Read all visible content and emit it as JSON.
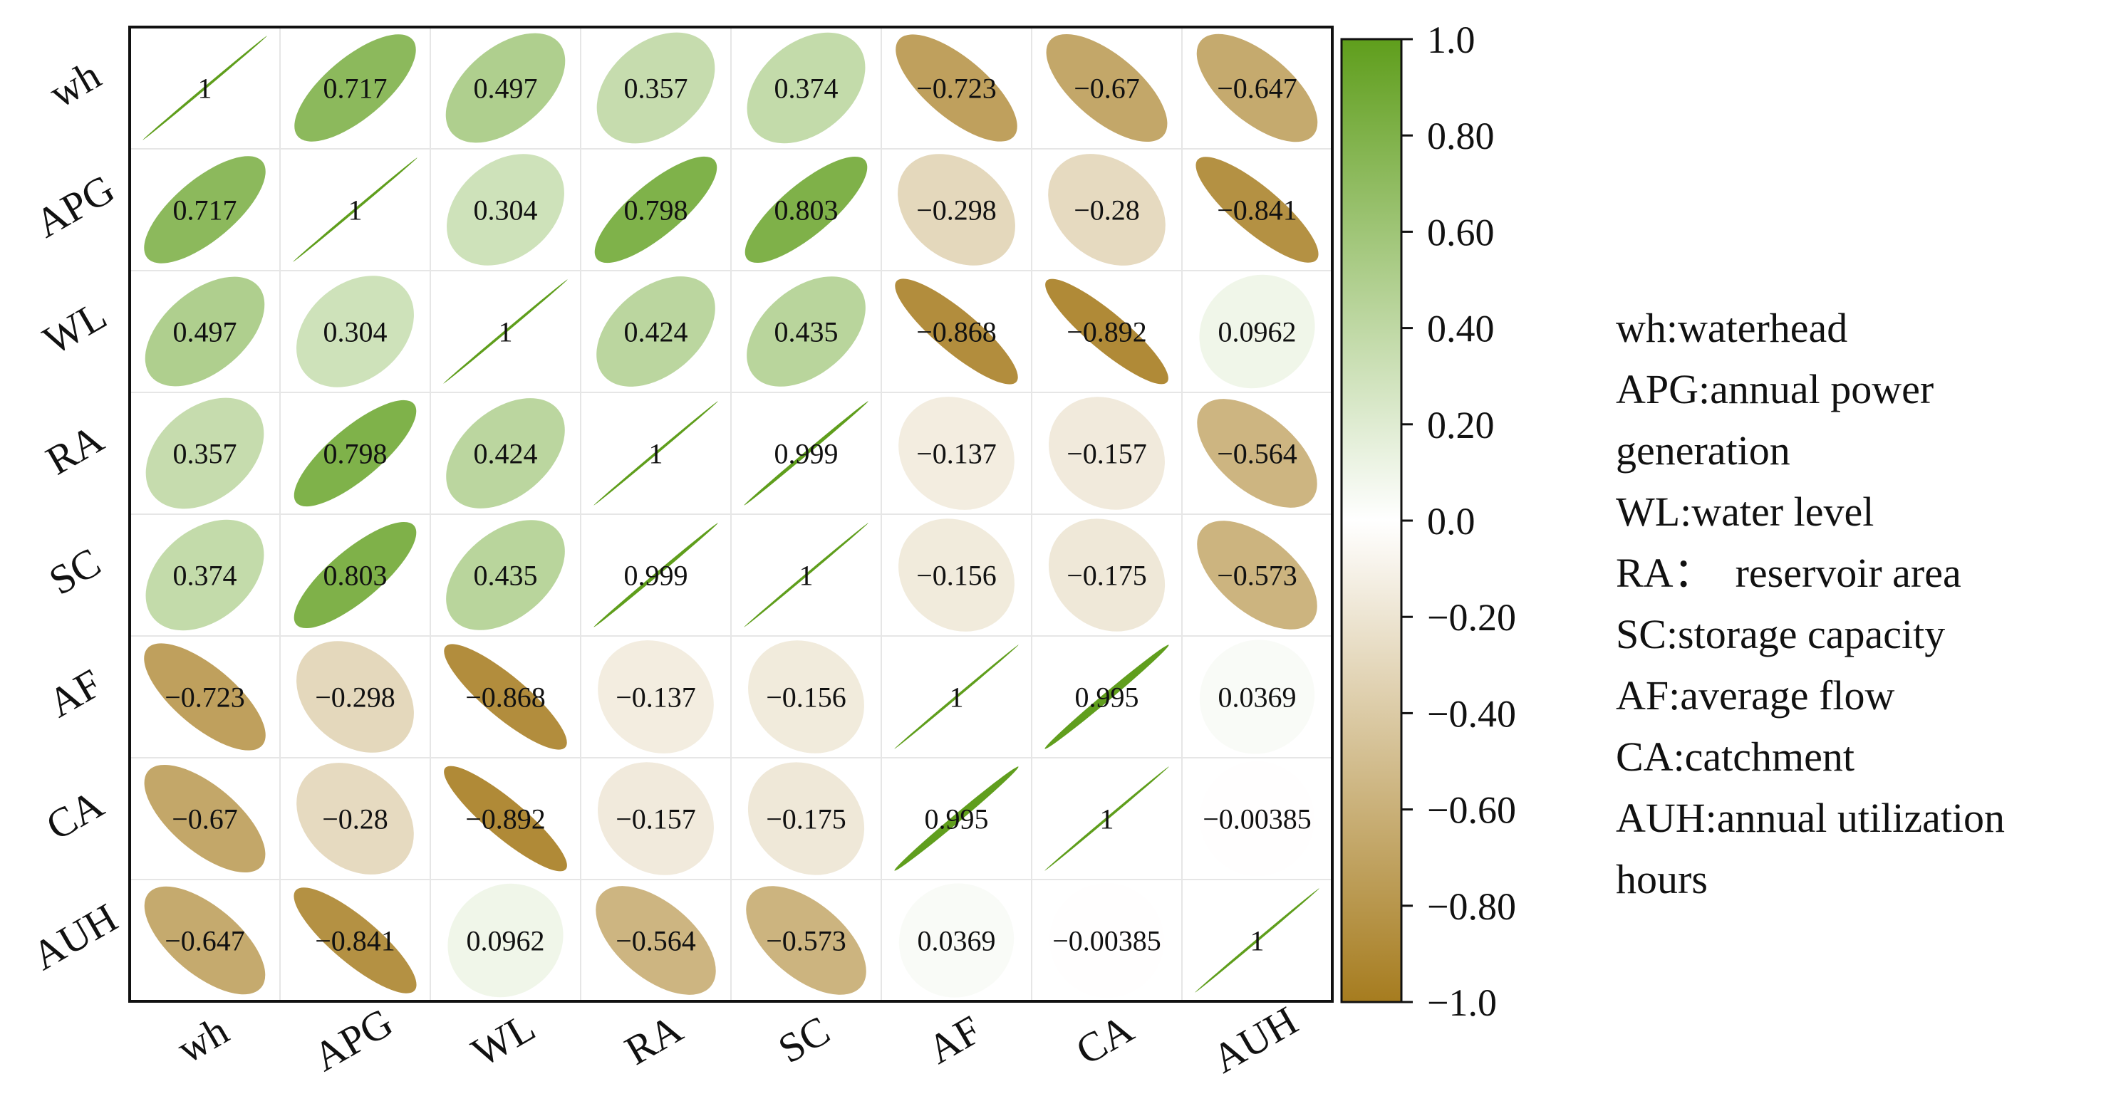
{
  "chart_data": {
    "type": "heatmap",
    "subtype": "correlation-ellipse-matrix",
    "variables": [
      "wh",
      "APG",
      "WL",
      "RA",
      "SC",
      "AF",
      "CA",
      "AUH"
    ],
    "matrix": [
      [
        1,
        0.717,
        0.497,
        0.357,
        0.374,
        -0.723,
        -0.67,
        -0.647
      ],
      [
        0.717,
        1,
        0.304,
        0.798,
        0.803,
        -0.298,
        -0.28,
        -0.841
      ],
      [
        0.497,
        0.304,
        1,
        0.424,
        0.435,
        -0.868,
        -0.892,
        0.0962
      ],
      [
        0.357,
        0.798,
        0.424,
        1,
        0.999,
        -0.137,
        -0.157,
        -0.564
      ],
      [
        0.374,
        0.803,
        0.435,
        0.999,
        1,
        -0.156,
        -0.175,
        -0.573
      ],
      [
        -0.723,
        -0.298,
        -0.868,
        -0.137,
        -0.156,
        1,
        0.995,
        0.0369
      ],
      [
        -0.67,
        -0.28,
        -0.892,
        -0.157,
        -0.175,
        0.995,
        1,
        -0.00385
      ],
      [
        -0.647,
        -0.841,
        0.0962,
        -0.564,
        -0.573,
        0.0369,
        -0.00385,
        1
      ]
    ],
    "labels": [
      [
        "1",
        "0.717",
        "0.497",
        "0.357",
        "0.374",
        "−0.723",
        "−0.67",
        "−0.647"
      ],
      [
        "0.717",
        "1",
        "0.304",
        "0.798",
        "0.803",
        "−0.298",
        "−0.28",
        "−0.841"
      ],
      [
        "0.497",
        "0.304",
        "1",
        "0.424",
        "0.435",
        "−0.868",
        "−0.892",
        "0.0962"
      ],
      [
        "0.357",
        "0.798",
        "0.424",
        "1",
        "0.999",
        "−0.137",
        "−0.157",
        "−0.564"
      ],
      [
        "0.374",
        "0.803",
        "0.435",
        "0.999",
        "1",
        "−0.156",
        "−0.175",
        "−0.573"
      ],
      [
        "−0.723",
        "−0.298",
        "−0.868",
        "−0.137",
        "−0.156",
        "1",
        "0.995",
        "0.0369"
      ],
      [
        "−0.67",
        "−0.28",
        "−0.892",
        "−0.157",
        "−0.175",
        "0.995",
        "1",
        "−0.00385"
      ],
      [
        "−0.647",
        "−0.841",
        "0.0962",
        "−0.564",
        "−0.573",
        "0.0369",
        "−0.00385",
        "1"
      ]
    ],
    "colorbar": {
      "range": [
        -1.0,
        1.0
      ],
      "ticks": [
        {
          "value": 1.0,
          "label": "1.0"
        },
        {
          "value": 0.8,
          "label": "0.80"
        },
        {
          "value": 0.6,
          "label": "0.60"
        },
        {
          "value": 0.4,
          "label": "0.40"
        },
        {
          "value": 0.2,
          "label": "0.20"
        },
        {
          "value": 0.0,
          "label": "0.0"
        },
        {
          "value": -0.2,
          "label": "−0.20"
        },
        {
          "value": -0.4,
          "label": "−0.40"
        },
        {
          "value": -0.6,
          "label": "−0.60"
        },
        {
          "value": -0.8,
          "label": "−0.80"
        },
        {
          "value": -1.0,
          "label": "−1.0"
        }
      ],
      "positive_color": "#5f9e1c",
      "neutral_color": "#ffffff",
      "negative_color": "#a67c1f"
    },
    "legend_position": "right"
  },
  "legend": {
    "lines": [
      "wh:waterhead",
      "APG:annual power",
      "generation",
      "WL:water level",
      "RA：  reservoir area",
      "SC:storage capacity",
      "AF:average flow",
      "CA:catchment",
      "AUH:annual utilization",
      "hours"
    ]
  },
  "colors": {
    "frame": "#111111",
    "gridline": "#e6e6e6"
  }
}
